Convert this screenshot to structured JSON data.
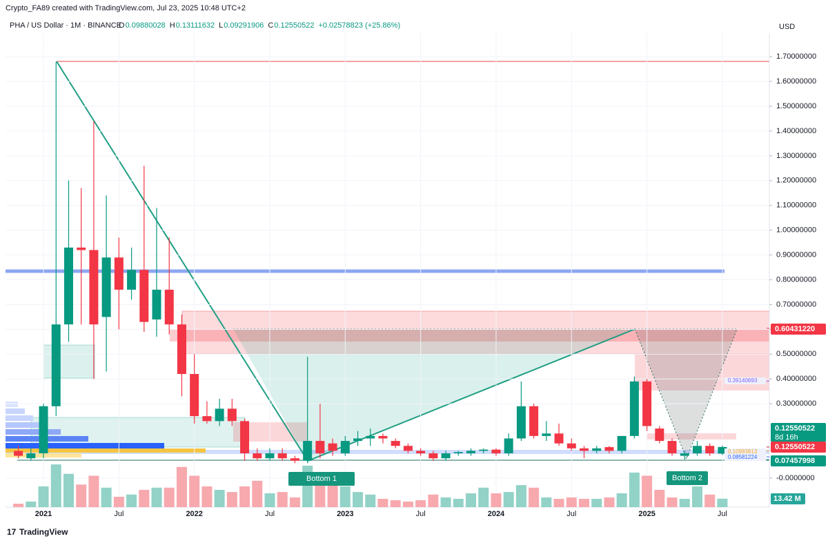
{
  "header": {
    "author": "Crypto_FA89 created with TradingView.com, Jul 23, 2025 10:48 UTC+2",
    "symbol": "PHA / US Dollar · 1M · BINANCE",
    "ohlc": [
      {
        "key": "O",
        "value": "0.09880028"
      },
      {
        "key": "H",
        "value": "0.13111632"
      },
      {
        "key": "L",
        "value": "0.09291906"
      },
      {
        "key": "C",
        "value": "0.12550522"
      }
    ],
    "change": "+0.02578823 (+25.86%)",
    "currency": "USD"
  },
  "footer": "TradingView",
  "chart_data": {
    "type": "candlestick",
    "categories": [
      null,
      null,
      "2021",
      null,
      null,
      null,
      null,
      null,
      "Jul",
      null,
      null,
      null,
      null,
      null,
      "2022",
      null,
      null,
      null,
      null,
      null,
      "Jul",
      null,
      null,
      null,
      null,
      null,
      "2023",
      null,
      null,
      null,
      null,
      null,
      "Jul",
      null,
      null,
      null,
      null,
      null,
      "2024",
      null,
      null,
      null,
      null,
      null,
      "Jul",
      null,
      null,
      null,
      null,
      null,
      "2025",
      null,
      null,
      null,
      null,
      null,
      "Jul"
    ],
    "open": [
      0.11,
      0.08,
      0.1,
      0.29,
      0.62,
      0.93,
      0.92,
      0.65,
      0.89,
      0.76,
      0.84,
      0.64,
      0.76,
      0.62,
      0.42,
      0.25,
      0.23,
      0.28,
      0.23,
      0.1,
      0.08,
      0.1,
      0.08,
      0.07,
      0.15,
      0.14,
      0.1,
      0.15,
      0.16,
      0.17,
      0.15,
      0.13,
      0.11,
      0.1,
      0.08,
      0.1,
      0.1,
      0.11,
      0.115,
      0.1,
      0.16,
      0.29,
      0.17,
      0.18,
      0.14,
      0.12,
      0.11,
      0.125,
      0.11,
      0.17,
      0.39,
      0.2,
      0.15,
      0.09,
      0.1,
      0.13,
      0.09880028
    ],
    "high": [
      0.13,
      0.12,
      0.3,
      1.68,
      1.2,
      1.17,
      1.44,
      1.14,
      0.97,
      0.93,
      1.26,
      1.09,
      0.97,
      0.66,
      0.5,
      0.31,
      0.32,
      0.32,
      0.24,
      0.12,
      0.12,
      0.12,
      0.09,
      0.49,
      0.3,
      0.16,
      0.17,
      0.19,
      0.2,
      0.18,
      0.16,
      0.14,
      0.12,
      0.11,
      0.11,
      0.11,
      0.12,
      0.12,
      0.12,
      0.18,
      0.39,
      0.3,
      0.23,
      0.22,
      0.16,
      0.13,
      0.13,
      0.13,
      0.17,
      0.41,
      0.4,
      0.21,
      0.16,
      0.11,
      0.15,
      0.14,
      0.13111632
    ],
    "low": [
      0.08,
      0.07,
      0.08,
      0.25,
      0.55,
      0.62,
      0.4,
      0.43,
      0.6,
      0.72,
      0.59,
      0.57,
      0.58,
      0.33,
      0.22,
      0.22,
      0.21,
      0.21,
      0.07,
      0.07,
      0.07,
      0.07,
      0.06,
      0.06,
      0.08,
      0.09,
      0.09,
      0.13,
      0.13,
      0.14,
      0.12,
      0.1,
      0.09,
      0.07,
      0.07,
      0.09,
      0.09,
      0.1,
      0.09,
      0.09,
      0.15,
      0.16,
      0.15,
      0.13,
      0.11,
      0.08,
      0.1,
      0.1,
      0.1,
      0.16,
      0.19,
      0.14,
      0.09,
      0.075,
      0.09,
      0.09,
      0.09291906
    ],
    "close": [
      0.09,
      0.1,
      0.29,
      0.62,
      0.93,
      0.92,
      0.62,
      0.89,
      0.76,
      0.84,
      0.63,
      0.76,
      0.62,
      0.42,
      0.25,
      0.23,
      0.28,
      0.23,
      0.1,
      0.08,
      0.1,
      0.08,
      0.07,
      0.15,
      0.1,
      0.11,
      0.15,
      0.16,
      0.17,
      0.16,
      0.13,
      0.11,
      0.1,
      0.08,
      0.1,
      0.105,
      0.11,
      0.115,
      0.1,
      0.16,
      0.29,
      0.17,
      0.18,
      0.14,
      0.12,
      0.11,
      0.12,
      0.11,
      0.17,
      0.39,
      0.21,
      0.15,
      0.1,
      0.1,
      0.13,
      0.1,
      0.12550522
    ],
    "volume": [
      5.5,
      8.8,
      33,
      68,
      53,
      36,
      50,
      31,
      16.5,
      20,
      27.5,
      31,
      31,
      64,
      50,
      33,
      27.5,
      24,
      33,
      42,
      22,
      24,
      15.4,
      66,
      55,
      38.5,
      33,
      24,
      20,
      13.2,
      11,
      8.8,
      11,
      20,
      15.4,
      13.2,
      22,
      31,
      22,
      24,
      35,
      31,
      15.4,
      13.2,
      15.4,
      13.2,
      13.2,
      15.4,
      22,
      55,
      50,
      27.5,
      15.4,
      13.2,
      33,
      20,
      13.42
    ],
    "volume_label": "13.42 M",
    "up_color": "#089981",
    "down_color": "#f23645",
    "volume_up_color": "#92d2c7",
    "volume_down_color": "#f7a9ae",
    "ylim": [
      -0.117,
      1.795
    ],
    "yticks": [
      {
        "value": 1.7,
        "label": "1.70000000"
      },
      {
        "value": 1.6,
        "label": "1.60000000"
      },
      {
        "value": 1.5,
        "label": "1.50000000"
      },
      {
        "value": 1.4,
        "label": "1.40000000"
      },
      {
        "value": 1.3,
        "label": "1.30000000"
      },
      {
        "value": 1.2,
        "label": "1.20000000"
      },
      {
        "value": 1.1,
        "label": "1.10000000"
      },
      {
        "value": 1.0,
        "label": "1.00000000"
      },
      {
        "value": 0.9,
        "label": "0.90000000"
      },
      {
        "value": 0.8,
        "label": "0.80000000"
      },
      {
        "value": 0.7,
        "label": "0.70000000"
      },
      {
        "value": 0.6,
        "label": "0.60000000"
      },
      {
        "value": 0.5,
        "label": "0.50000000"
      },
      {
        "value": 0.4,
        "label": "0.40000000"
      },
      {
        "value": 0.3,
        "label": "0.30000000"
      },
      {
        "value": 0,
        "label": "-0.0000000"
      }
    ],
    "grid": true,
    "price_labels": [
      {
        "value": 0.6043122,
        "label": "0.60431220",
        "color": "#f23645"
      },
      {
        "value": 0.39140693,
        "label": "0.39140693",
        "color": "#7b61ff"
      },
      {
        "value": 0.12550522,
        "label": "0.12550522",
        "color": "#089981"
      },
      {
        "value": 0.12550522,
        "label": "0.12550522",
        "color": "#f23645"
      },
      {
        "value": 0.10993813,
        "label": "0.10993813",
        "color": "#f5a623"
      },
      {
        "value": 0.08581224,
        "label": "0.08581224",
        "color": "#2962ff"
      },
      {
        "value": 0.07457998,
        "label": "0.07457998",
        "color": "#089981"
      }
    ],
    "countdown": "8d 16h",
    "annotations": [
      "Bottom 1",
      "Bottom 2"
    ]
  }
}
